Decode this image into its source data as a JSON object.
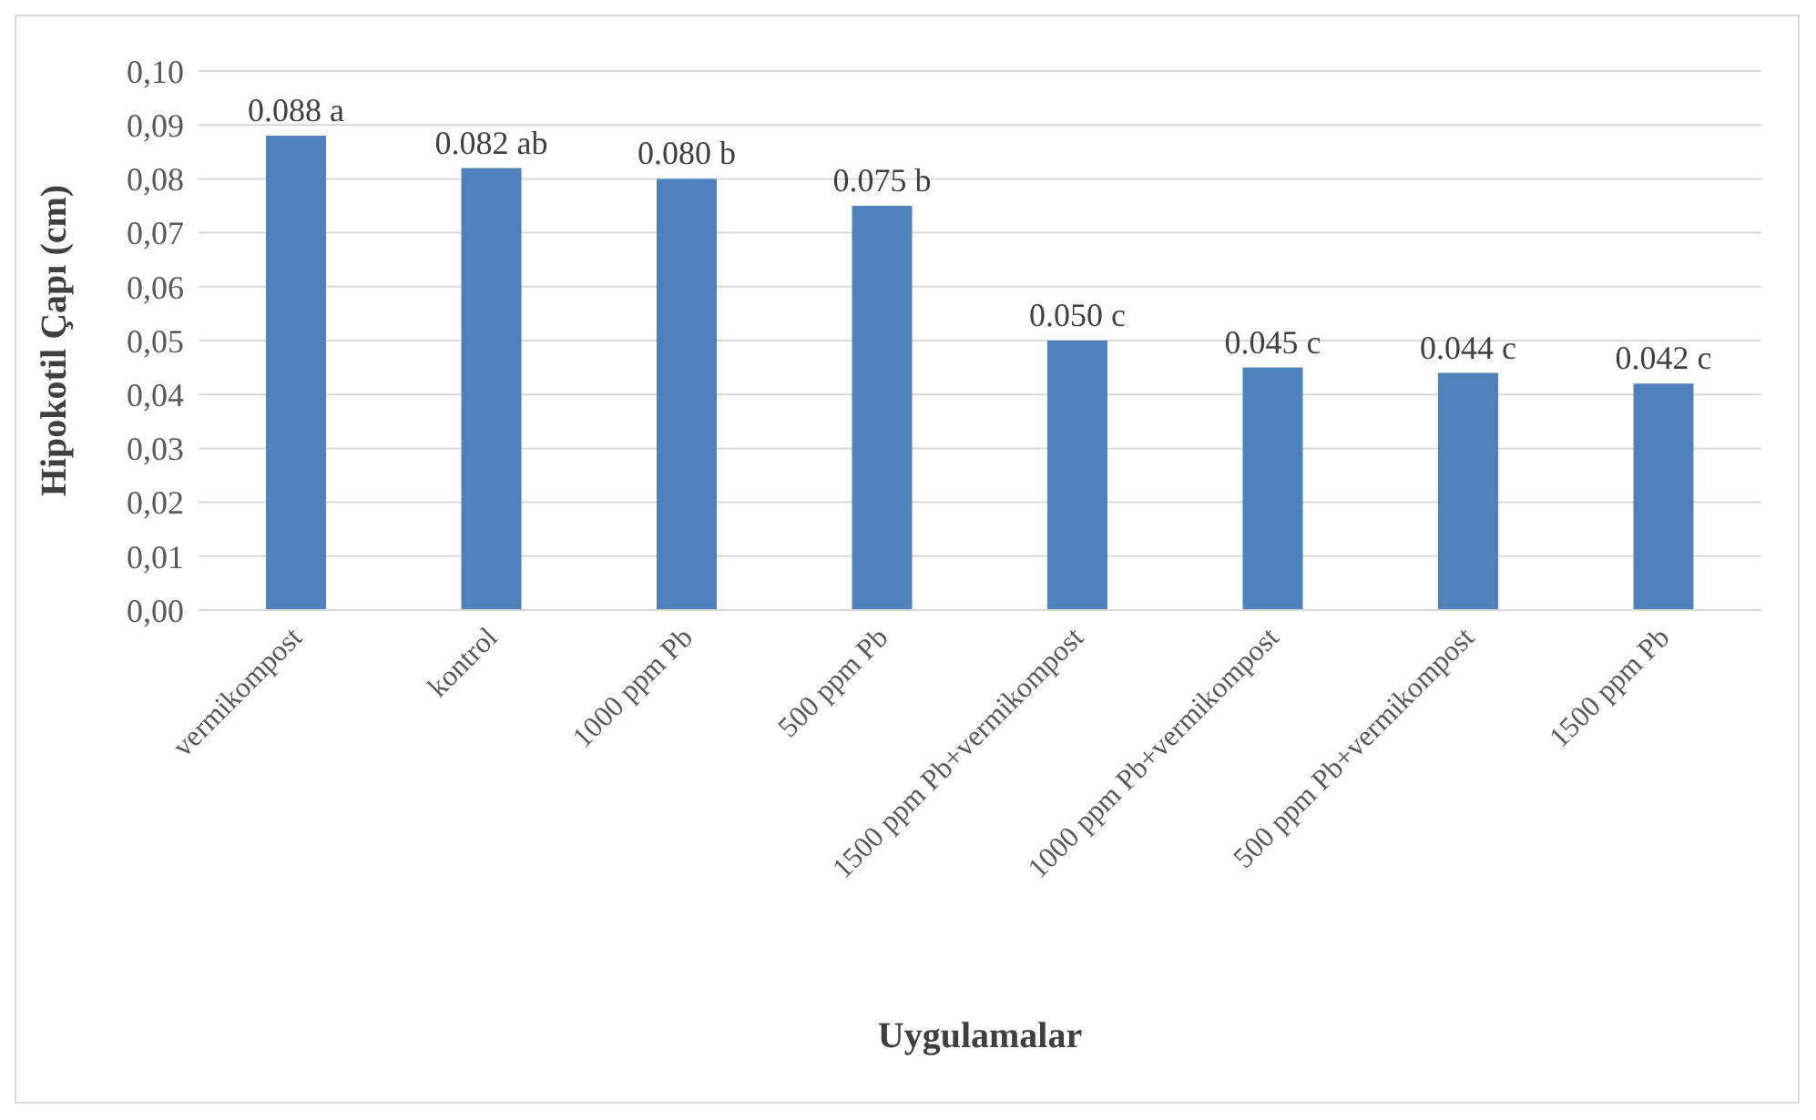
{
  "chart_data": {
    "type": "bar",
    "xlabel": "Uygulamalar",
    "ylabel": "Hipokotil Çapı (cm)",
    "categories": [
      "vermikompost",
      "kontrol",
      "1000 ppm Pb",
      "500 ppm Pb",
      "1500 ppm Pb+vermikompost",
      "1000 ppm Pb+vermikompost",
      "500 ppm Pb+vermikompost",
      "1500 ppm Pb"
    ],
    "values": [
      0.088,
      0.082,
      0.08,
      0.075,
      0.05,
      0.045,
      0.044,
      0.042
    ],
    "value_labels": [
      "0.088 a",
      "0.082 ab",
      "0.080 b",
      "0.075 b",
      "0.050 c",
      "0.045 c",
      "0.044 c",
      "0.042 c"
    ],
    "color": "#4f81bd",
    "ylim": [
      0,
      0.1
    ],
    "yticks": [
      {
        "value": 0,
        "label": "0,00"
      },
      {
        "value": 0.01,
        "label": "0,01"
      },
      {
        "value": 0.02,
        "label": "0,02"
      },
      {
        "value": 0.03,
        "label": "0,03"
      },
      {
        "value": 0.04,
        "label": "0,04"
      },
      {
        "value": 0.05,
        "label": "0,05"
      },
      {
        "value": 0.06,
        "label": "0,06"
      },
      {
        "value": 0.07,
        "label": "0,07"
      },
      {
        "value": 0.08,
        "label": "0,08"
      },
      {
        "value": 0.09,
        "label": "0,09"
      },
      {
        "value": 0.1,
        "label": "0,10"
      }
    ],
    "grid": "y"
  }
}
